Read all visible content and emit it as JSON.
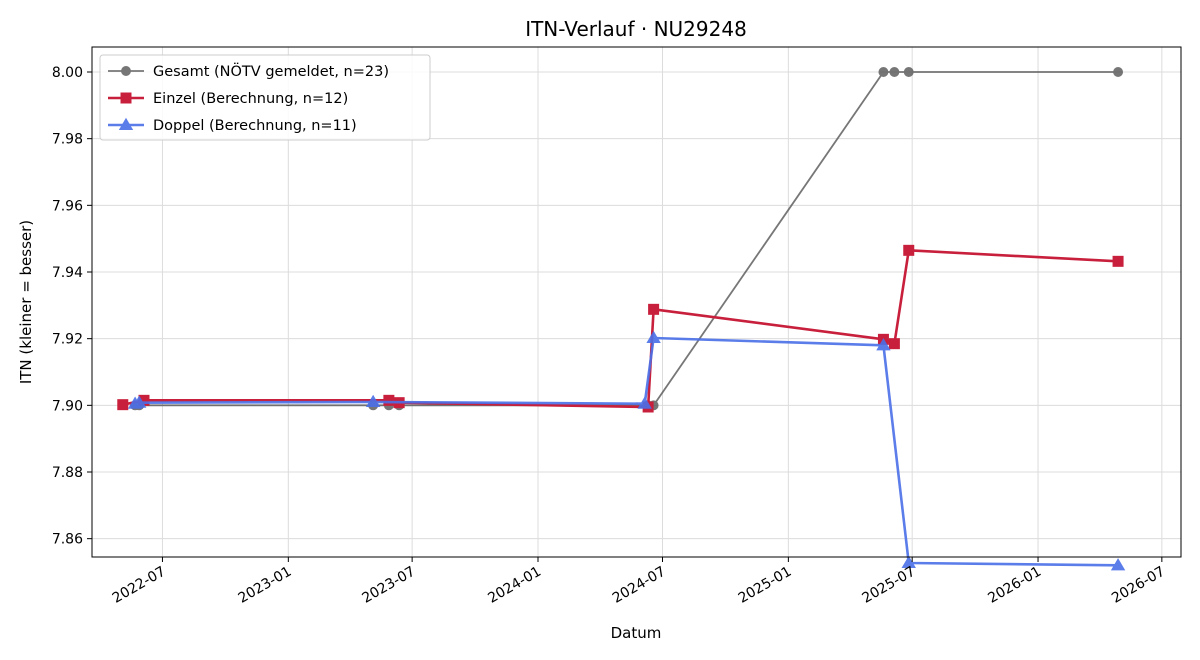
{
  "chart_data": {
    "type": "line",
    "title": "ITN-Verlauf · NU29248",
    "xlabel": "Datum",
    "ylabel": "ITN  (kleiner = besser)",
    "x_axis_type": "date",
    "xlim": [
      "2022-03-20",
      "2026-07-29"
    ],
    "ylim": [
      7.8545,
      8.0075
    ],
    "x_ticks": [
      {
        "date": "2022-07-01",
        "label": "2022-07"
      },
      {
        "date": "2023-01-01",
        "label": "2023-01"
      },
      {
        "date": "2023-07-01",
        "label": "2023-07"
      },
      {
        "date": "2024-01-01",
        "label": "2024-01"
      },
      {
        "date": "2024-07-01",
        "label": "2024-07"
      },
      {
        "date": "2025-01-01",
        "label": "2025-01"
      },
      {
        "date": "2025-07-01",
        "label": "2025-07"
      },
      {
        "date": "2026-01-01",
        "label": "2026-01"
      },
      {
        "date": "2026-07-01",
        "label": "2026-07"
      }
    ],
    "y_ticks": [
      {
        "value": 7.86,
        "label": "7.86"
      },
      {
        "value": 7.88,
        "label": "7.88"
      },
      {
        "value": 7.9,
        "label": "7.90"
      },
      {
        "value": 7.92,
        "label": "7.92"
      },
      {
        "value": 7.94,
        "label": "7.94"
      },
      {
        "value": 7.96,
        "label": "7.96"
      },
      {
        "value": 7.98,
        "label": "7.98"
      },
      {
        "value": 8.0,
        "label": "8.00"
      }
    ],
    "grid": true,
    "legend_position": "top-left",
    "series": [
      {
        "name": "Gesamt (NÖTV gemeldet, n=23)",
        "color": "#555555",
        "marker": "circle",
        "points": [
          {
            "x": "2022-05-22",
            "y": 7.9
          },
          {
            "x": "2022-05-28",
            "y": 7.9
          },
          {
            "x": "2023-05-05",
            "y": 7.9
          },
          {
            "x": "2023-05-28",
            "y": 7.9
          },
          {
            "x": "2023-06-12",
            "y": 7.9
          },
          {
            "x": "2024-06-10",
            "y": 7.9
          },
          {
            "x": "2024-06-18",
            "y": 7.9
          },
          {
            "x": "2025-05-20",
            "y": 8.0
          },
          {
            "x": "2025-06-05",
            "y": 8.0
          },
          {
            "x": "2025-06-26",
            "y": 8.0
          },
          {
            "x": "2026-04-28",
            "y": 8.0
          }
        ]
      },
      {
        "name": "Einzel (Berechnung, n=12)",
        "color": "#c8203c",
        "marker": "square",
        "points": [
          {
            "x": "2022-05-04",
            "y": 7.9002
          },
          {
            "x": "2022-06-04",
            "y": 7.9015
          },
          {
            "x": "2023-05-28",
            "y": 7.9015
          },
          {
            "x": "2023-06-12",
            "y": 7.9008
          },
          {
            "x": "2024-06-10",
            "y": 7.8995
          },
          {
            "x": "2024-06-18",
            "y": 7.9288
          },
          {
            "x": "2025-05-20",
            "y": 7.9198
          },
          {
            "x": "2025-06-05",
            "y": 7.9185
          },
          {
            "x": "2025-06-26",
            "y": 7.9465
          },
          {
            "x": "2026-04-28",
            "y": 7.9432
          }
        ]
      },
      {
        "name": "Doppel (Berechnung, n=11)",
        "color": "#4a6fe8",
        "marker": "triangle",
        "points": [
          {
            "x": "2022-05-22",
            "y": 7.9005
          },
          {
            "x": "2022-05-28",
            "y": 7.9008
          },
          {
            "x": "2023-05-05",
            "y": 7.901
          },
          {
            "x": "2024-06-05",
            "y": 7.9005
          },
          {
            "x": "2024-06-18",
            "y": 7.9202
          },
          {
            "x": "2025-05-20",
            "y": 7.918
          },
          {
            "x": "2025-06-26",
            "y": 7.8527
          },
          {
            "x": "2026-04-28",
            "y": 7.852
          }
        ]
      }
    ]
  }
}
